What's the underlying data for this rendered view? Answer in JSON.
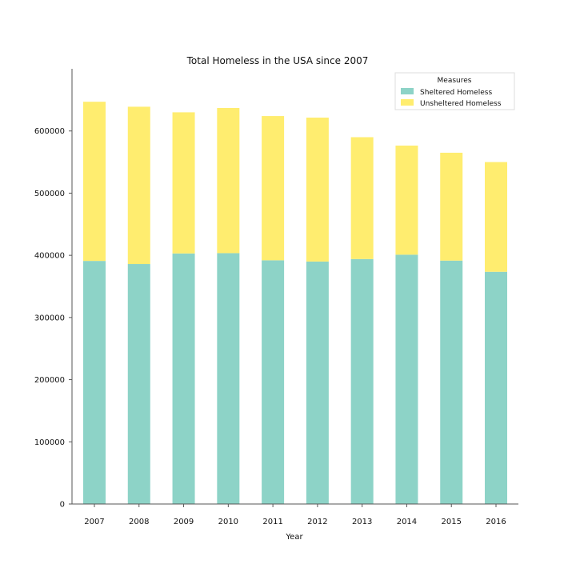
{
  "chart_data": {
    "type": "bar",
    "stacked": true,
    "title": "Total Homeless in the USA since 2007",
    "xlabel": "Year",
    "ylabel": "",
    "categories": [
      "2007",
      "2008",
      "2009",
      "2010",
      "2011",
      "2012",
      "2013",
      "2014",
      "2015",
      "2016"
    ],
    "series": [
      {
        "name": "Sheltered Homeless",
        "color": "#8dd3c7",
        "values": [
          391000,
          386000,
          403000,
          403500,
          392000,
          390000,
          394000,
          401000,
          391500,
          373500
        ]
      },
      {
        "name": "Unsheltered Homeless",
        "color": "#ffed6f",
        "values": [
          256000,
          253000,
          227000,
          233500,
          232000,
          231500,
          196000,
          175500,
          173500,
          176500
        ]
      }
    ],
    "ylim": [
      0,
      700000
    ],
    "yticks": [
      "0",
      "100000",
      "200000",
      "300000",
      "400000",
      "500000",
      "600000"
    ],
    "legend": {
      "title": "Measures",
      "position": "top-right"
    },
    "grid": false
  }
}
